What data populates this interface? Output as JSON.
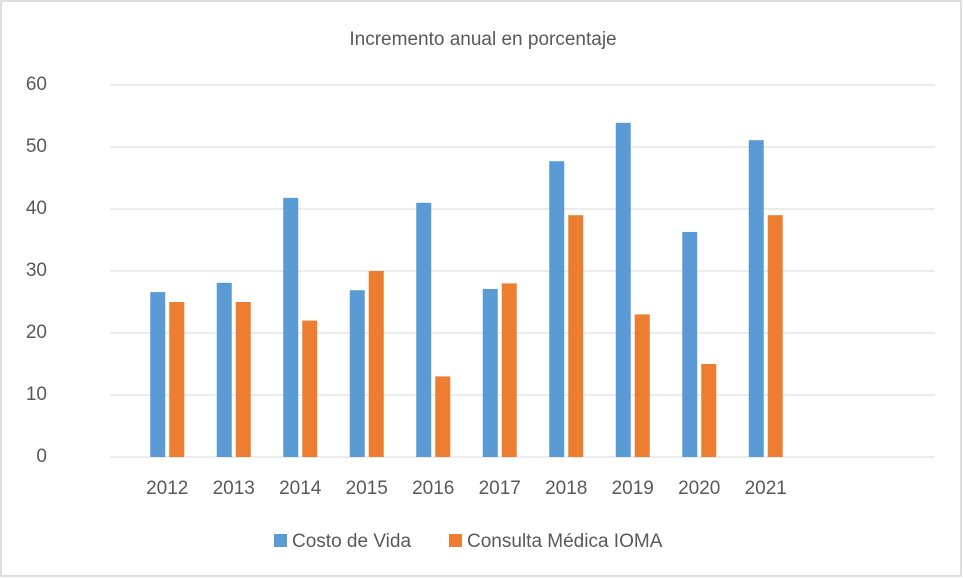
{
  "chart_data": {
    "type": "bar",
    "title": "Incremento anual en porcentaje",
    "categories": [
      "2012",
      "2013",
      "2014",
      "2015",
      "2016",
      "2017",
      "2018",
      "2019",
      "2020",
      "2021"
    ],
    "series": [
      {
        "name": "Costo de Vida",
        "color": "#5b9bd5",
        "values": [
          26.6,
          28.1,
          41.8,
          26.9,
          41,
          27.1,
          47.7,
          53.9,
          36.3,
          51.1
        ]
      },
      {
        "name": "Consulta Médica IOMA",
        "color": "#ed7d31",
        "values": [
          25,
          25,
          22,
          30,
          13,
          28,
          39,
          23,
          15,
          39
        ]
      }
    ],
    "ylim": [
      0,
      60
    ],
    "yticks": [
      0,
      10,
      20,
      30,
      40,
      50,
      60
    ],
    "grid": true,
    "legend": "bottom"
  }
}
